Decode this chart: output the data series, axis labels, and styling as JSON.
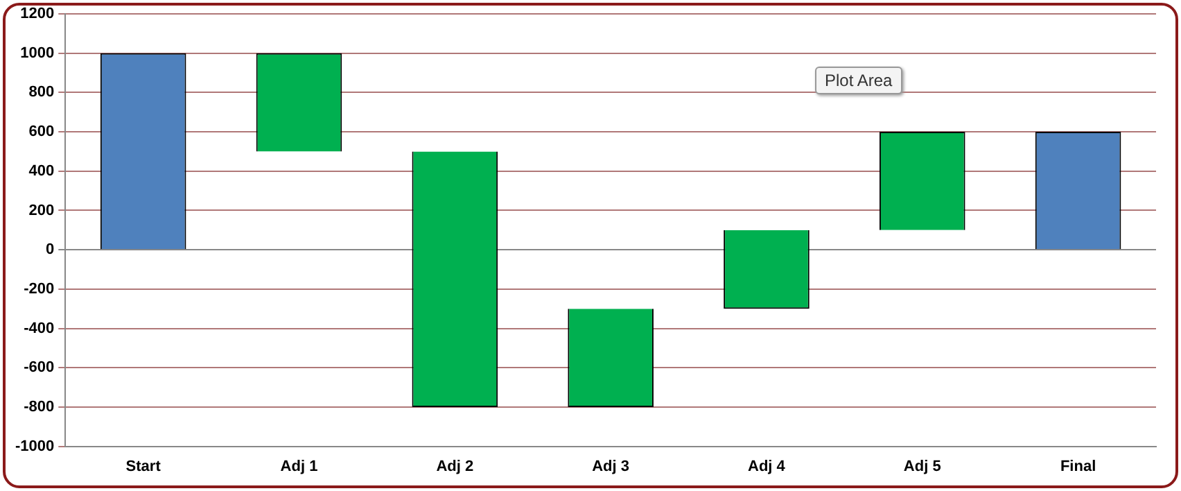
{
  "chart_data": {
    "type": "bar",
    "categories": [
      "Start",
      "Adj 1",
      "Adj 2",
      "Adj 3",
      "Adj 4",
      "Adj 5",
      "Final"
    ],
    "base": [
      0,
      1000,
      500,
      -800,
      -300,
      100,
      0
    ],
    "values": [
      1000,
      -500,
      -1300,
      500,
      400,
      500,
      600
    ],
    "colors": [
      "#4f81bd",
      "#00b050",
      "#00b050",
      "#00b050",
      "#00b050",
      "#00b050",
      "#4f81bd"
    ],
    "ylim": [
      -1000,
      1200
    ],
    "yticks": [
      -1000,
      -800,
      -600,
      -400,
      -200,
      0,
      200,
      400,
      600,
      800,
      1000,
      1200
    ],
    "grid": "y",
    "legend": false,
    "annotations": [
      "Plot Area"
    ]
  }
}
